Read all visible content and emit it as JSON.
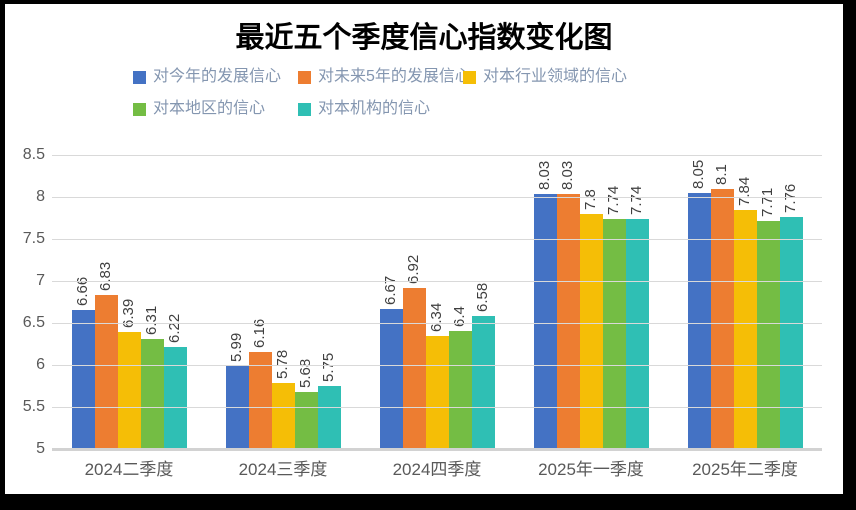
{
  "page": {
    "title": "最近五个季度信心指数变化图"
  },
  "colors": {
    "frame": "#000000",
    "background": "#ffffff",
    "grid": "#d9d9d9",
    "axis": "#d2d2d2",
    "tick_text": "#595959",
    "category_text": "#595959",
    "legend_text": "#8496b0",
    "data_label_text": "#3f3f3f"
  },
  "chart_data": {
    "type": "bar",
    "title": "最近五个季度信心指数变化图",
    "categories": [
      "2024二季度",
      "2024三季度",
      "2024四季度",
      "2025年一季度",
      "2025年二季度"
    ],
    "series": [
      {
        "name": "对今年的发展信心",
        "color": "#4472c4",
        "values": [
          6.66,
          5.99,
          6.67,
          8.03,
          8.05
        ]
      },
      {
        "name": "对未来5年的发展信心",
        "color": "#ed7d31",
        "values": [
          6.83,
          6.16,
          6.92,
          8.03,
          8.1
        ]
      },
      {
        "name": "对本行业领域的信心",
        "color": "#f5be06",
        "values": [
          6.39,
          5.78,
          6.34,
          7.8,
          7.84
        ]
      },
      {
        "name": "对本地区的信心",
        "color": "#74bd44",
        "values": [
          6.31,
          5.68,
          6.4,
          7.74,
          7.71
        ]
      },
      {
        "name": "对本机构的信心",
        "color": "#2fbfb4",
        "values": [
          6.22,
          5.75,
          6.58,
          7.74,
          7.76
        ]
      }
    ],
    "ylim": [
      5,
      8.5
    ],
    "ytick_step": 0.5,
    "bar_baseline": 5,
    "grid": true,
    "legend_position": "top",
    "data_labels": "rotated-90"
  }
}
